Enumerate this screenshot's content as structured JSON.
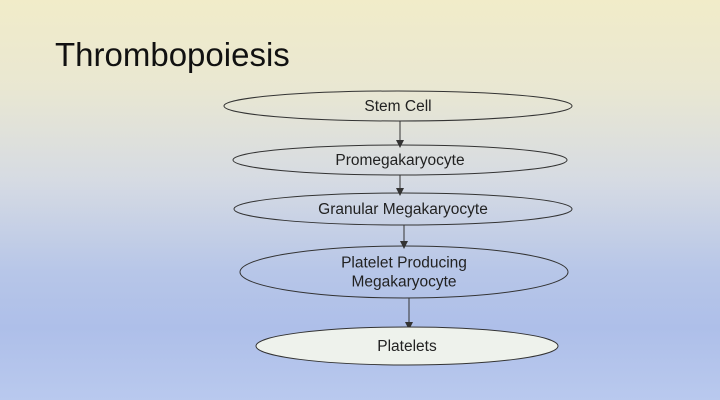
{
  "slide": {
    "title": "Thrombopoiesis"
  },
  "flowchart": {
    "nodes": [
      {
        "id": "stem-cell",
        "lines": [
          "Stem Cell"
        ],
        "fill": "none"
      },
      {
        "id": "promegakaryocyte",
        "lines": [
          "Promegakaryocyte"
        ],
        "fill": "none"
      },
      {
        "id": "granular-megakaryocyte",
        "lines": [
          "Granular Megakaryocyte"
        ],
        "fill": "none"
      },
      {
        "id": "platelet-producing-megakaryocyte",
        "lines": [
          "Platelet Producing",
          "Megakaryocyte"
        ],
        "fill": "none"
      },
      {
        "id": "platelets",
        "lines": [
          "Platelets"
        ],
        "fill": "#eef2ec"
      }
    ],
    "edges": [
      {
        "from": "stem-cell",
        "to": "promegakaryocyte"
      },
      {
        "from": "promegakaryocyte",
        "to": "granular-megakaryocyte"
      },
      {
        "from": "granular-megakaryocyte",
        "to": "platelet-producing-megakaryocyte"
      },
      {
        "from": "platelet-producing-megakaryocyte",
        "to": "platelets"
      }
    ],
    "colors": {
      "stroke": "#333333",
      "text": "#222222"
    }
  }
}
